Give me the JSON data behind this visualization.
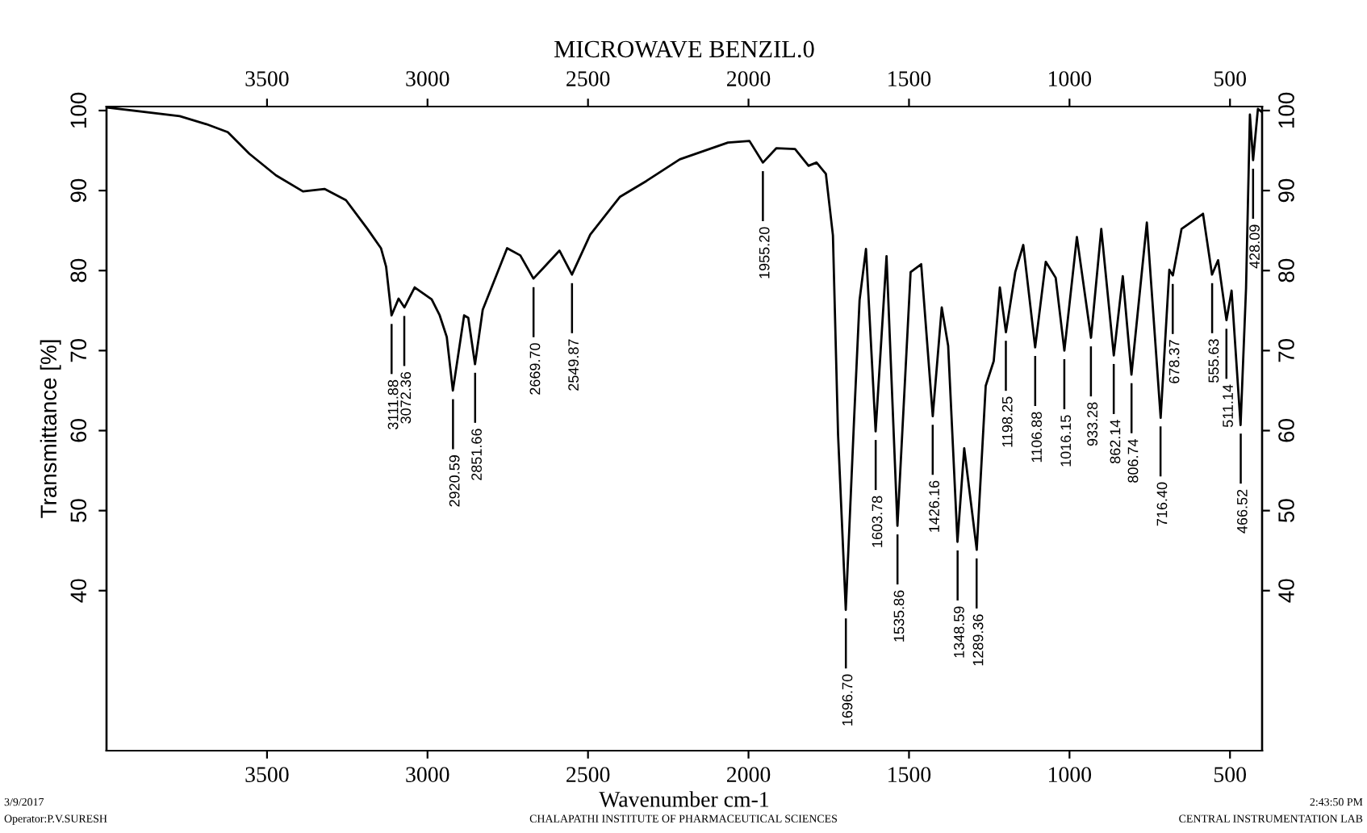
{
  "chart_data": {
    "type": "line",
    "title": "MICROWAVE BENZIL.0",
    "xlabel": "Wavenumber cm-1",
    "ylabel": "Transmittance [%]",
    "xlim": [
      4000,
      400
    ],
    "xticks": [
      3500,
      3000,
      2500,
      2000,
      1500,
      1000,
      500
    ],
    "x2lim": [
      4000,
      400
    ],
    "x2ticks": [
      3500,
      3000,
      2500,
      2000,
      1500,
      1000,
      500
    ],
    "ylim": [
      20,
      100.5
    ],
    "yticks": [
      40,
      50,
      60,
      70,
      80,
      90,
      100
    ],
    "y2lim": [
      20,
      100.5
    ],
    "y2ticks": [
      40,
      50,
      60,
      70,
      80,
      90,
      100
    ],
    "grid": false,
    "legend": false,
    "marker": "none",
    "line_style": "solid",
    "series": [
      {
        "color": "#000000",
        "x": [
          4000,
          3772,
          3689,
          3622,
          3555,
          3472,
          3388,
          3321,
          3254,
          3187,
          3145,
          3129,
          3112,
          3090,
          3072,
          3040,
          2987,
          2962,
          2940,
          2921,
          2886,
          2873,
          2852,
          2828,
          2752,
          2711,
          2670,
          2635,
          2589,
          2550,
          2493,
          2401,
          2318,
          2214,
          2064,
          1997,
          1955,
          1913,
          1855,
          1813,
          1788,
          1759,
          1737,
          1721,
          1697,
          1671,
          1654,
          1634,
          1604,
          1570,
          1536,
          1495,
          1462,
          1426,
          1398,
          1378,
          1349,
          1328,
          1289,
          1261,
          1236,
          1217,
          1198,
          1169,
          1144,
          1107,
          1074,
          1043,
          1016,
          977,
          933,
          901,
          862,
          834,
          807,
          759,
          716,
          689,
          678,
          651,
          584,
          556,
          537,
          511,
          495,
          467,
          450,
          438,
          428,
          413,
          400
        ],
        "values": [
          100.4,
          99.3,
          98.3,
          97.3,
          94.6,
          91.9,
          89.9,
          90.2,
          88.8,
          85.2,
          82.8,
          80.5,
          74.4,
          76.5,
          75.4,
          77.9,
          76.4,
          74.4,
          71.7,
          65.0,
          74.4,
          74.1,
          68.3,
          75.1,
          82.8,
          81.9,
          79.0,
          80.5,
          82.5,
          79.5,
          84.5,
          89.2,
          91.2,
          93.9,
          96.0,
          96.2,
          93.5,
          95.3,
          95.2,
          93.1,
          93.5,
          92.1,
          84.4,
          59.5,
          37.6,
          61.5,
          76.3,
          82.7,
          59.9,
          81.8,
          48.1,
          79.8,
          80.8,
          61.8,
          75.4,
          70.6,
          46.1,
          57.8,
          45.1,
          65.6,
          68.7,
          77.9,
          72.3,
          79.8,
          83.2,
          70.4,
          81.1,
          79.1,
          70.0,
          84.2,
          71.6,
          85.2,
          69.4,
          79.3,
          67.0,
          86.0,
          61.6,
          80.1,
          79.4,
          85.2,
          87.1,
          79.5,
          81.3,
          73.8,
          77.5,
          60.7,
          77.8,
          99.5,
          93.8,
          100.2,
          99.8
        ]
      }
    ],
    "annotations": [
      {
        "text": "3111.88",
        "x": 3111.88,
        "y": 74.4
      },
      {
        "text": "3072.36",
        "x": 3072.36,
        "y": 75.4
      },
      {
        "text": "2920.59",
        "x": 2920.59,
        "y": 65.0
      },
      {
        "text": "2851.66",
        "x": 2851.66,
        "y": 68.3
      },
      {
        "text": "2669.70",
        "x": 2669.7,
        "y": 79.0
      },
      {
        "text": "2549.87",
        "x": 2549.87,
        "y": 79.5
      },
      {
        "text": "1955.20",
        "x": 1955.2,
        "y": 93.5
      },
      {
        "text": "1696.70",
        "x": 1696.7,
        "y": 37.6
      },
      {
        "text": "1603.78",
        "x": 1603.78,
        "y": 59.9
      },
      {
        "text": "1535.86",
        "x": 1535.86,
        "y": 48.1
      },
      {
        "text": "1426.16",
        "x": 1426.16,
        "y": 61.8
      },
      {
        "text": "1348.59",
        "x": 1348.59,
        "y": 46.1
      },
      {
        "text": "1289.36",
        "x": 1289.36,
        "y": 45.1
      },
      {
        "text": "1198.25",
        "x": 1198.25,
        "y": 72.3
      },
      {
        "text": "1106.88",
        "x": 1106.88,
        "y": 70.4
      },
      {
        "text": "1016.15",
        "x": 1016.15,
        "y": 70.0
      },
      {
        "text": "933.28",
        "x": 933.28,
        "y": 71.6
      },
      {
        "text": "862.14",
        "x": 862.14,
        "y": 69.4
      },
      {
        "text": "806.74",
        "x": 806.74,
        "y": 67.0
      },
      {
        "text": "716.40",
        "x": 716.4,
        "y": 61.6
      },
      {
        "text": "678.37",
        "x": 678.37,
        "y": 79.4
      },
      {
        "text": "555.63",
        "x": 555.63,
        "y": 79.5
      },
      {
        "text": "511.14",
        "x": 511.14,
        "y": 73.8
      },
      {
        "text": "466.52",
        "x": 466.52,
        "y": 60.7
      },
      {
        "text": "428.09",
        "x": 428.09,
        "y": 93.8
      },
      "3/9/2017",
      "Operator:P.V.SURESH",
      "CHALAPATHI INSTITUTE OF PHARMACEUTICAL SCIENCES",
      "2:43:50 PM",
      "CENTRAL INSTRUMENTATION LAB"
    ]
  }
}
